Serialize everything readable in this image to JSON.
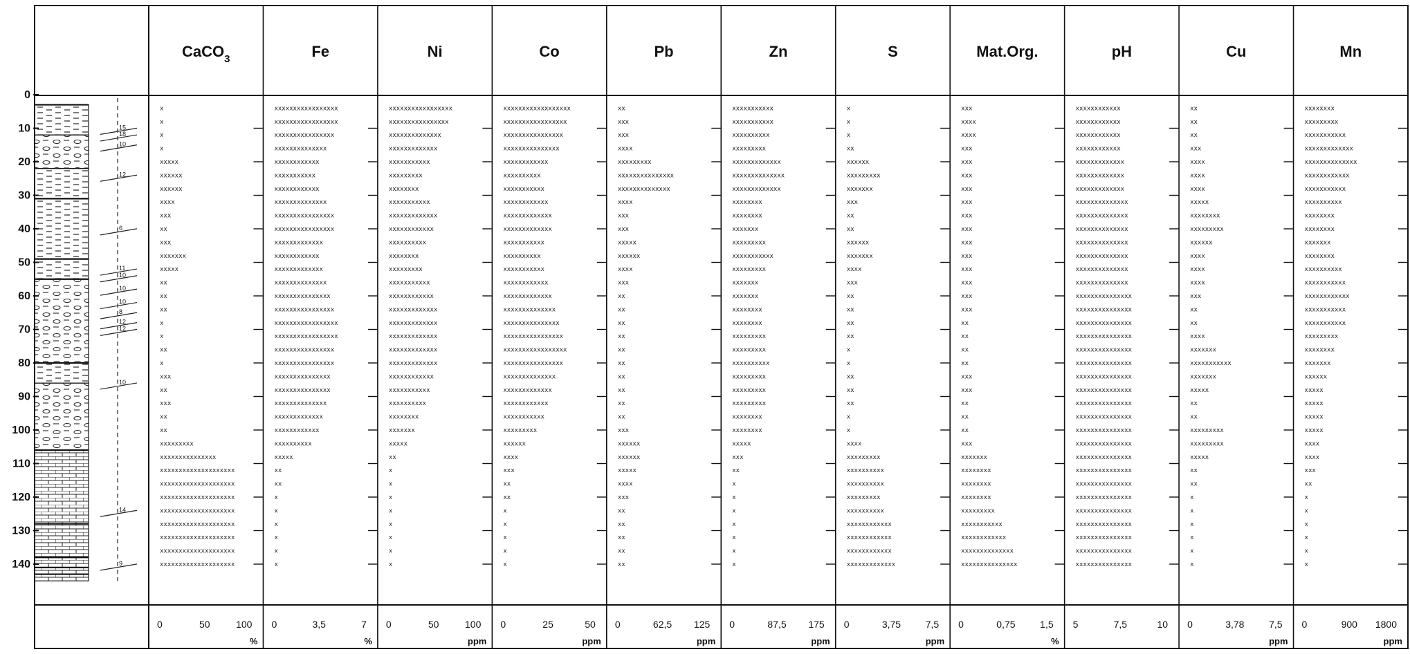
{
  "chart_data": {
    "type": "profile",
    "depth_axis": {
      "range": [
        0,
        145
      ],
      "ticks": [
        0,
        10,
        20,
        30,
        40,
        50,
        60,
        70,
        80,
        90,
        100,
        110,
        120,
        130,
        140
      ]
    },
    "depths": [
      4,
      8,
      12,
      16,
      20,
      24,
      28,
      32,
      36,
      40,
      44,
      48,
      52,
      56,
      60,
      64,
      68,
      72,
      76,
      80,
      84,
      88,
      92,
      96,
      100,
      104,
      108,
      112,
      116,
      120,
      124,
      128,
      132,
      136,
      140
    ],
    "bed_labels": [
      {
        "depth": 11,
        "text": "15"
      },
      {
        "depth": 13,
        "text": "18"
      },
      {
        "depth": 16,
        "text": "10"
      },
      {
        "depth": 25,
        "text": "12"
      },
      {
        "depth": 41,
        "text": "6"
      },
      {
        "depth": 53,
        "text": "11"
      },
      {
        "depth": 55,
        "text": "10"
      },
      {
        "depth": 59,
        "text": "10"
      },
      {
        "depth": 63,
        "text": "10"
      },
      {
        "depth": 66,
        "text": "8"
      },
      {
        "depth": 69,
        "text": "12"
      },
      {
        "depth": 71,
        "text": "12"
      },
      {
        "depth": 87,
        "text": "10"
      },
      {
        "depth": 125,
        "text": "14"
      },
      {
        "depth": 141,
        "text": "9"
      }
    ],
    "columns": [
      {
        "name": "CaCO",
        "sub": "3",
        "unit": "%",
        "range": [
          0,
          100
        ],
        "ticks": [
          "0",
          "50",
          "100"
        ],
        "values": [
          2,
          4,
          4,
          6,
          20,
          26,
          28,
          18,
          12,
          8,
          14,
          30,
          22,
          8,
          8,
          10,
          6,
          6,
          8,
          6,
          12,
          10,
          12,
          8,
          10,
          40,
          65,
          85,
          85,
          85,
          88,
          88,
          88,
          88,
          88
        ]
      },
      {
        "name": "Fe",
        "unit": "%",
        "range": [
          0,
          7
        ],
        "ticks": [
          "0",
          "3,5",
          "7"
        ],
        "values": [
          5.2,
          5.0,
          4.7,
          4.2,
          3.6,
          3.4,
          3.6,
          4.2,
          4.8,
          4.7,
          4.0,
          3.6,
          3.8,
          4.2,
          4.6,
          4.8,
          5.0,
          5.0,
          4.8,
          4.8,
          4.6,
          4.4,
          4.2,
          3.9,
          3.7,
          2.9,
          1.5,
          0.7,
          0.5,
          0.4,
          0.3,
          0.2,
          0.2,
          0.2,
          0.2
        ]
      },
      {
        "name": "Ni",
        "unit": "ppm",
        "range": [
          0,
          100
        ],
        "ticks": [
          "0",
          "50",
          "100"
        ],
        "values": [
          74,
          70,
          62,
          56,
          48,
          40,
          36,
          46,
          56,
          54,
          44,
          34,
          38,
          46,
          52,
          56,
          58,
          58,
          58,
          56,
          52,
          46,
          42,
          36,
          30,
          20,
          10,
          6,
          5,
          4,
          3,
          3,
          3,
          2,
          2
        ]
      },
      {
        "name": "Co",
        "unit": "ppm",
        "range": [
          0,
          50
        ],
        "ticks": [
          "0",
          "25",
          "50"
        ],
        "values": [
          38,
          37,
          34,
          32,
          26,
          22,
          24,
          26,
          28,
          28,
          24,
          22,
          24,
          26,
          28,
          30,
          32,
          34,
          36,
          34,
          30,
          28,
          26,
          24,
          20,
          14,
          8,
          6,
          5,
          4,
          3,
          3,
          3,
          3,
          3
        ]
      },
      {
        "name": "Pb",
        "unit": "ppm",
        "range": [
          0,
          125
        ],
        "ticks": [
          "0",
          "62,5",
          "125"
        ],
        "values": [
          12,
          14,
          16,
          20,
          50,
          80,
          75,
          20,
          18,
          16,
          28,
          34,
          20,
          14,
          12,
          12,
          12,
          12,
          12,
          12,
          12,
          12,
          12,
          12,
          14,
          30,
          32,
          26,
          20,
          14,
          12,
          12,
          12,
          12,
          12
        ]
      },
      {
        "name": "Zn",
        "unit": "ppm",
        "range": [
          0,
          175
        ],
        "ticks": [
          "0",
          "87,5",
          "175"
        ],
        "values": [
          85,
          80,
          74,
          70,
          100,
          104,
          98,
          60,
          58,
          56,
          70,
          82,
          70,
          56,
          55,
          60,
          62,
          66,
          70,
          72,
          70,
          68,
          66,
          62,
          58,
          40,
          24,
          12,
          8,
          4,
          3,
          6,
          6,
          4,
          4
        ]
      },
      {
        "name": "S",
        "unit": "ppm",
        "range": [
          0,
          75
        ],
        "ticks": [
          "0",
          "3,75",
          "7,5"
        ],
        "values": [
          0,
          0,
          2,
          8,
          20,
          28,
          24,
          10,
          6,
          6,
          20,
          24,
          14,
          10,
          8,
          8,
          6,
          6,
          4,
          4,
          6,
          6,
          8,
          4,
          4,
          14,
          30,
          34,
          32,
          30,
          34,
          38,
          40,
          40,
          42
        ]
      },
      {
        "name": "Mat.Org.",
        "unit": "%",
        "range": [
          0,
          1.5
        ],
        "ticks": [
          "0",
          "0,75",
          "1,5"
        ],
        "values": [
          0.2,
          0.25,
          0.25,
          0.2,
          0.2,
          0.2,
          0.2,
          0.2,
          0.2,
          0.2,
          0.2,
          0.2,
          0.2,
          0.2,
          0.2,
          0.2,
          0.15,
          0.15,
          0.15,
          0.15,
          0.2,
          0.2,
          0.15,
          0.15,
          0.15,
          0.2,
          0.45,
          0.5,
          0.5,
          0.55,
          0.6,
          0.7,
          0.8,
          0.9,
          1.0
        ]
      },
      {
        "name": "pH",
        "unit": "",
        "range": [
          5,
          10
        ],
        "ticks": [
          "5",
          "7,5",
          "10"
        ],
        "values": [
          7.7,
          7.7,
          7.7,
          7.7,
          7.8,
          7.9,
          7.9,
          8.0,
          8.0,
          8.0,
          8.0,
          8.1,
          8.1,
          8.1,
          8.2,
          8.2,
          8.2,
          8.2,
          8.2,
          8.2,
          8.2,
          8.2,
          8.2,
          8.2,
          8.2,
          8.2,
          8.2,
          8.2,
          8.3,
          8.3,
          8.3,
          8.3,
          8.3,
          8.3,
          8.3
        ]
      },
      {
        "name": "Cu",
        "unit": "ppm",
        "range": [
          0,
          75
        ],
        "ticks": [
          "0",
          "3,78",
          "7,5"
        ],
        "values": [
          6,
          8,
          8,
          10,
          14,
          12,
          12,
          16,
          26,
          30,
          20,
          14,
          12,
          12,
          10,
          8,
          8,
          14,
          22,
          36,
          24,
          16,
          8,
          6,
          28,
          30,
          16,
          8,
          6,
          4,
          3,
          3,
          3,
          3,
          3
        ]
      },
      {
        "name": "Mn",
        "unit": "ppm",
        "range": [
          0,
          1800
        ],
        "ticks": [
          "0",
          "900",
          "1800"
        ],
        "values": [
          620,
          720,
          860,
          980,
          1080,
          940,
          860,
          760,
          640,
          600,
          520,
          640,
          760,
          860,
          920,
          880,
          820,
          720,
          620,
          520,
          440,
          420,
          400,
          420,
          400,
          340,
          280,
          220,
          140,
          110,
          90,
          80,
          70,
          60,
          60
        ]
      }
    ]
  }
}
